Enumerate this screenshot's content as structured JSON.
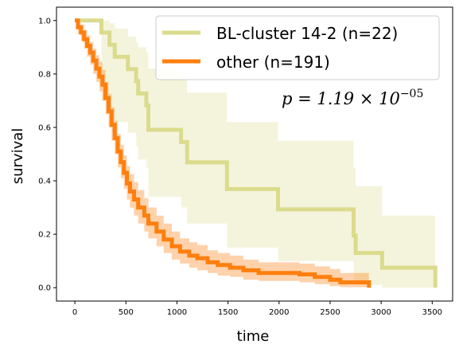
{
  "chart_data": {
    "type": "line",
    "subtype": "kaplan-meier",
    "xlabel": "time",
    "ylabel": "survival",
    "xlim": [
      -180,
      3700
    ],
    "ylim": [
      -0.05,
      1.05
    ],
    "xticks": [
      0,
      500,
      1000,
      1500,
      2000,
      2500,
      3000,
      3500
    ],
    "yticks": [
      0.0,
      0.2,
      0.4,
      0.6,
      0.8,
      1.0
    ],
    "xtick_labels": [
      "0",
      "500",
      "1000",
      "1500",
      "2000",
      "2500",
      "3000",
      "3500"
    ],
    "ytick_labels": [
      "0.0",
      "0.2",
      "0.4",
      "0.6",
      "0.8",
      "1.0"
    ],
    "annotation": {
      "prefix": "p = 1.19 × 10",
      "exponent": "−05"
    },
    "legend_position": "top-right",
    "series": [
      {
        "name": "BL-cluster 14-2 (n=22)",
        "color": "#dbdb8d",
        "ci_color": "#dbdb8d",
        "points": [
          [
            0,
            1.0
          ],
          [
            260,
            0.955
          ],
          [
            340,
            0.909
          ],
          [
            390,
            0.864
          ],
          [
            520,
            0.818
          ],
          [
            600,
            0.773
          ],
          [
            620,
            0.727
          ],
          [
            700,
            0.682
          ],
          [
            720,
            0.591
          ],
          [
            1040,
            0.545
          ],
          [
            1100,
            0.469
          ],
          [
            1490,
            0.369
          ],
          [
            1990,
            0.293
          ],
          [
            2730,
            0.195
          ],
          [
            2750,
            0.13
          ],
          [
            3010,
            0.075
          ],
          [
            3530,
            0.0
          ]
        ],
        "ci": [
          [
            0,
            1.0,
            1.0
          ],
          [
            260,
            0.7,
            1.0
          ],
          [
            340,
            0.66,
            0.99
          ],
          [
            390,
            0.62,
            0.97
          ],
          [
            520,
            0.58,
            0.94
          ],
          [
            600,
            0.53,
            0.92
          ],
          [
            620,
            0.48,
            0.9
          ],
          [
            700,
            0.45,
            0.88
          ],
          [
            720,
            0.34,
            0.82
          ],
          [
            1040,
            0.3,
            0.79
          ],
          [
            1100,
            0.24,
            0.73
          ],
          [
            1490,
            0.15,
            0.62
          ],
          [
            1990,
            0.1,
            0.55
          ],
          [
            2730,
            0.03,
            0.45
          ],
          [
            2750,
            0.01,
            0.38
          ],
          [
            3010,
            0.0,
            0.27
          ],
          [
            3530,
            0.0,
            0.27
          ]
        ]
      },
      {
        "name": "other (n=191)",
        "color": "#ff7f0e",
        "ci_color": "#ff7f0e",
        "points": [
          [
            0,
            1.0
          ],
          [
            30,
            0.975
          ],
          [
            60,
            0.955
          ],
          [
            90,
            0.93
          ],
          [
            120,
            0.905
          ],
          [
            150,
            0.88
          ],
          [
            180,
            0.85
          ],
          [
            210,
            0.82
          ],
          [
            240,
            0.79
          ],
          [
            270,
            0.76
          ],
          [
            300,
            0.71
          ],
          [
            330,
            0.66
          ],
          [
            360,
            0.61
          ],
          [
            390,
            0.56
          ],
          [
            420,
            0.51
          ],
          [
            450,
            0.47
          ],
          [
            480,
            0.43
          ],
          [
            510,
            0.39
          ],
          [
            540,
            0.36
          ],
          [
            580,
            0.33
          ],
          [
            620,
            0.3
          ],
          [
            680,
            0.27
          ],
          [
            720,
            0.24
          ],
          [
            800,
            0.21
          ],
          [
            870,
            0.18
          ],
          [
            950,
            0.155
          ],
          [
            1030,
            0.135
          ],
          [
            1120,
            0.12
          ],
          [
            1200,
            0.11
          ],
          [
            1300,
            0.095
          ],
          [
            1400,
            0.085
          ],
          [
            1520,
            0.075
          ],
          [
            1650,
            0.065
          ],
          [
            1800,
            0.055
          ],
          [
            2200,
            0.05
          ],
          [
            2350,
            0.04
          ],
          [
            2500,
            0.03
          ],
          [
            2600,
            0.02
          ],
          [
            2880,
            0.0
          ]
        ],
        "ci": [
          [
            0,
            1.0,
            1.0
          ],
          [
            30,
            0.95,
            0.99
          ],
          [
            60,
            0.925,
            0.985
          ],
          [
            90,
            0.895,
            0.965
          ],
          [
            120,
            0.865,
            0.945
          ],
          [
            150,
            0.835,
            0.92
          ],
          [
            180,
            0.8,
            0.895
          ],
          [
            210,
            0.77,
            0.87
          ],
          [
            240,
            0.735,
            0.845
          ],
          [
            270,
            0.7,
            0.815
          ],
          [
            300,
            0.65,
            0.77
          ],
          [
            330,
            0.6,
            0.725
          ],
          [
            360,
            0.55,
            0.675
          ],
          [
            390,
            0.5,
            0.625
          ],
          [
            420,
            0.45,
            0.575
          ],
          [
            450,
            0.41,
            0.535
          ],
          [
            480,
            0.37,
            0.495
          ],
          [
            510,
            0.33,
            0.455
          ],
          [
            540,
            0.3,
            0.425
          ],
          [
            580,
            0.27,
            0.395
          ],
          [
            620,
            0.24,
            0.365
          ],
          [
            680,
            0.21,
            0.335
          ],
          [
            720,
            0.185,
            0.3
          ],
          [
            800,
            0.155,
            0.27
          ],
          [
            870,
            0.13,
            0.24
          ],
          [
            950,
            0.105,
            0.21
          ],
          [
            1030,
            0.09,
            0.185
          ],
          [
            1120,
            0.075,
            0.17
          ],
          [
            1200,
            0.065,
            0.16
          ],
          [
            1300,
            0.055,
            0.14
          ],
          [
            1400,
            0.045,
            0.13
          ],
          [
            1520,
            0.04,
            0.12
          ],
          [
            1650,
            0.03,
            0.105
          ],
          [
            1800,
            0.025,
            0.095
          ],
          [
            2200,
            0.02,
            0.09
          ],
          [
            2350,
            0.013,
            0.08
          ],
          [
            2500,
            0.006,
            0.07
          ],
          [
            2600,
            0.002,
            0.055
          ],
          [
            2880,
            0.0,
            0.04
          ]
        ]
      }
    ]
  }
}
